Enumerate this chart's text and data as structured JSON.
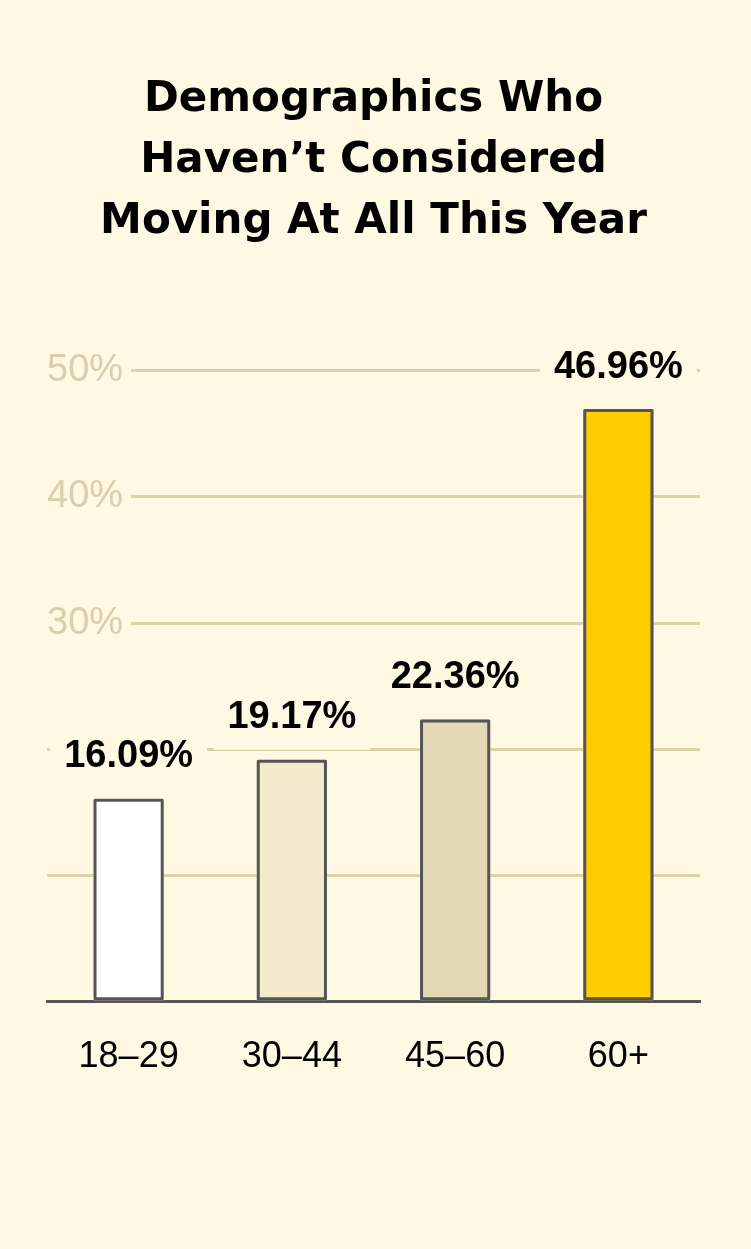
{
  "chart_data": {
    "type": "bar",
    "title": "Demographics Who Haven’t Considered Moving At All This Year",
    "categories": [
      "18–29",
      "30–44",
      "45–60",
      "60+"
    ],
    "values": [
      16.09,
      19.17,
      22.36,
      46.96
    ],
    "colors": [
      "#ffffff",
      "#f1ebcc",
      "#e2d8b6",
      "#ffcc00"
    ],
    "value_labels": [
      "16.09%",
      "19.17%",
      "22.36%",
      "46.96%"
    ],
    "ylim": [
      0,
      50
    ],
    "yticks": [
      {
        "value": 0,
        "label": null
      },
      {
        "value": 10,
        "label": null
      },
      {
        "value": 20,
        "label": null
      },
      {
        "value": 30,
        "label": "30%"
      },
      {
        "value": 40,
        "label": "40%"
      },
      {
        "value": 50,
        "label": "50%"
      }
    ],
    "grid": "y"
  }
}
